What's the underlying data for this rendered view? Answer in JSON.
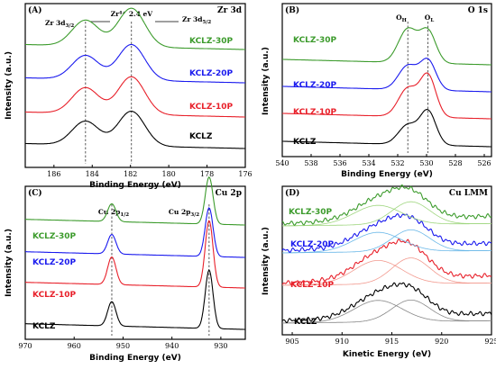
{
  "chart_data": [
    {
      "id": "A",
      "type": "line",
      "panel_label": "(A)",
      "title": "Zr 3d",
      "xlabel": "Binding Energy (eV)",
      "ylabel": "Intensity (a.u.)",
      "xlim": [
        176,
        187.5
      ],
      "xreversed": true,
      "xticks": [
        186,
        184,
        182,
        180,
        178,
        176
      ],
      "annotations": [
        "Zr 3d5/2",
        "Zr⁴⁺",
        "2.4 eV",
        "Zr 3d3/2"
      ],
      "reference_lines": [
        184.35,
        181.95
      ],
      "series": [
        {
          "name": "KCLZ",
          "color": "#000000",
          "peaks": [
            [
              184.35,
              1.2
            ],
            [
              181.95,
              1.75
            ]
          ]
        },
        {
          "name": "KCLZ-10P",
          "color": "#e8202a",
          "peaks": [
            [
              184.35,
              1.3
            ],
            [
              181.95,
              1.9
            ]
          ]
        },
        {
          "name": "KCLZ-20P",
          "color": "#1a1aee",
          "peaks": [
            [
              184.35,
              1.2
            ],
            [
              181.95,
              1.8
            ]
          ]
        },
        {
          "name": "KCLZ-30P",
          "color": "#3c9b2c",
          "peaks": [
            [
              184.35,
              1.3
            ],
            [
              181.95,
              1.95
            ]
          ]
        }
      ]
    },
    {
      "id": "B",
      "type": "line",
      "panel_label": "(B)",
      "title": "O 1s",
      "xlabel": "Binding Energy (eV)",
      "ylabel": "Intensity (a.u.)",
      "xlim": [
        525.5,
        540
      ],
      "xreversed": true,
      "xticks": [
        540,
        538,
        536,
        534,
        532,
        530,
        528,
        526
      ],
      "annotations": [
        "OH",
        "OL"
      ],
      "reference_lines": [
        531.3,
        529.9
      ],
      "series": [
        {
          "name": "KCLZ",
          "color": "#000000",
          "peaks": [
            [
              531.3,
              0.9
            ],
            [
              529.9,
              1.55
            ]
          ]
        },
        {
          "name": "KCLZ-10P",
          "color": "#e8202a",
          "peaks": [
            [
              531.3,
              1.3
            ],
            [
              529.9,
              1.9
            ]
          ]
        },
        {
          "name": "KCLZ-20P",
          "color": "#1a1aee",
          "peaks": [
            [
              531.3,
              1.1
            ],
            [
              529.9,
              1.35
            ]
          ]
        },
        {
          "name": "KCLZ-30P",
          "color": "#3c9b2c",
          "peaks": [
            [
              531.3,
              1.55
            ],
            [
              529.9,
              1.45
            ]
          ]
        }
      ]
    },
    {
      "id": "C",
      "type": "line",
      "panel_label": "(C)",
      "title": "Cu 2p",
      "xlabel": "Binding Energy (eV)",
      "ylabel": "Intensity (a.u.)",
      "xlim": [
        925,
        970
      ],
      "xreversed": true,
      "xticks": [
        970,
        960,
        950,
        940,
        930
      ],
      "annotations": [
        "Cu 2p1/2",
        "Cu 2p3/2"
      ],
      "reference_lines": [
        952.3,
        932.4
      ],
      "series": [
        {
          "name": "KCLZ",
          "color": "#000000",
          "peaks": [
            [
              952.3,
              1.5
            ],
            [
              932.4,
              3.6
            ]
          ]
        },
        {
          "name": "KCLZ-10P",
          "color": "#e8202a",
          "peaks": [
            [
              952.3,
              1.7
            ],
            [
              932.4,
              4.1
            ]
          ]
        },
        {
          "name": "KCLZ-20P",
          "color": "#1a1aee",
          "peaks": [
            [
              952.3,
              1.2
            ],
            [
              932.4,
              3.0
            ]
          ]
        },
        {
          "name": "KCLZ-30P",
          "color": "#3c9b2c",
          "peaks": [
            [
              952.3,
              1.1
            ],
            [
              932.4,
              2.9
            ]
          ]
        }
      ]
    },
    {
      "id": "D",
      "type": "line",
      "panel_label": "(D)",
      "title": "Cu LMM",
      "xlabel": "Kinetic Energy (eV)",
      "ylabel": "Intensity (a.u.)",
      "xlim": [
        904,
        925
      ],
      "xreversed": false,
      "xticks": [
        905,
        910,
        915,
        920,
        925
      ],
      "series": [
        {
          "name": "KCLZ",
          "color": "#000000",
          "fit_color": "#888888",
          "peaks": [
            [
              913.6,
              1.0,
              2.4
            ],
            [
              916.9,
              1.0,
              1.9
            ]
          ]
        },
        {
          "name": "KCLZ-10P",
          "color": "#e8202a",
          "fit_color": "#f29a8f",
          "peaks": [
            [
              913.6,
              1.1,
              2.4
            ],
            [
              916.9,
              1.2,
              1.9
            ]
          ]
        },
        {
          "name": "KCLZ-20P",
          "color": "#1a1aee",
          "fit_color": "#6bb8e8",
          "peaks": [
            [
              913.6,
              0.9,
              2.4
            ],
            [
              916.9,
              1.0,
              1.9
            ]
          ]
        },
        {
          "name": "KCLZ-30P",
          "color": "#3c9b2c",
          "fit_color": "#9fd67f",
          "peaks": [
            [
              913.6,
              0.9,
              2.4
            ],
            [
              916.9,
              1.05,
              1.9
            ]
          ]
        }
      ]
    }
  ]
}
